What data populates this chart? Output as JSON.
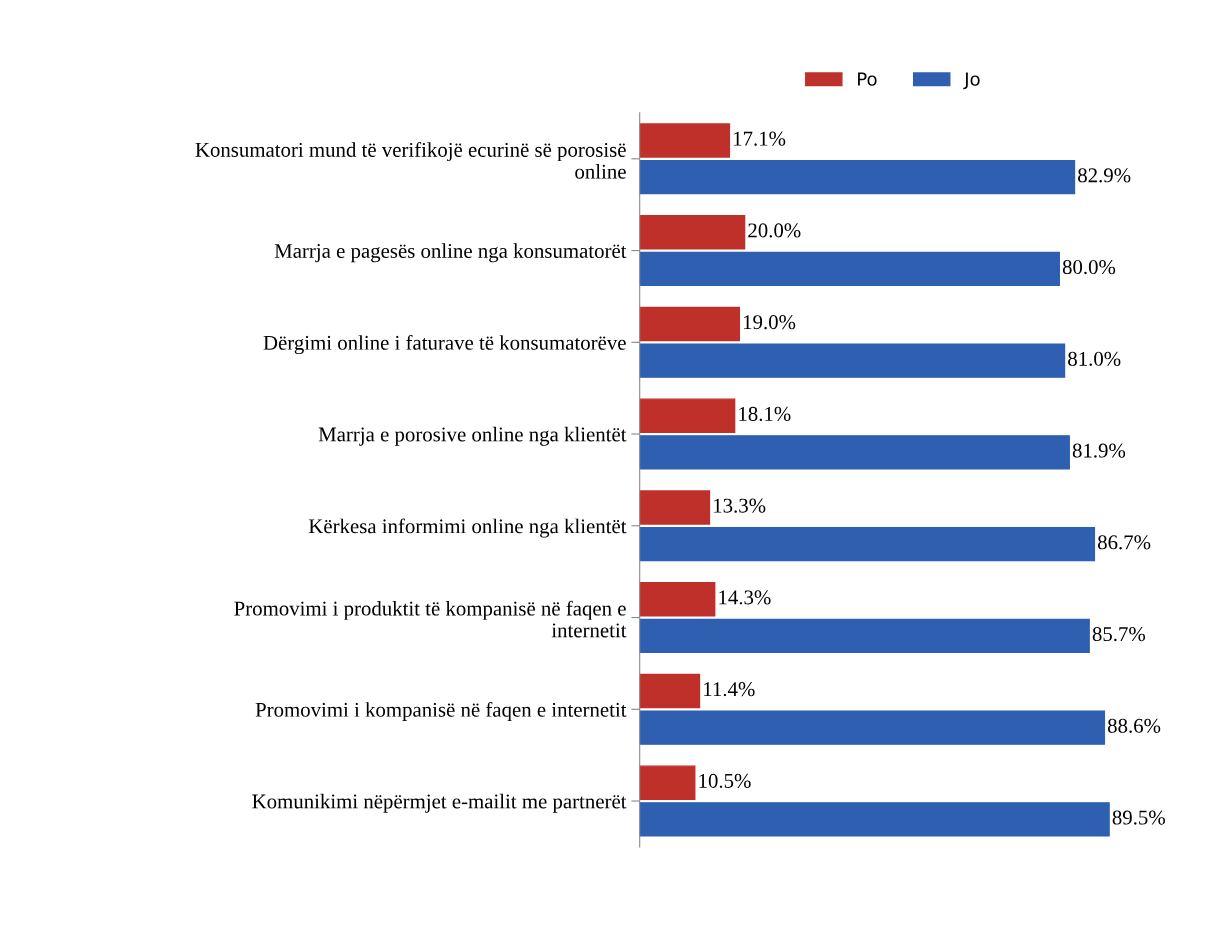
{
  "chart_data": {
    "type": "bar",
    "orientation": "horizontal",
    "categories": [
      "Konsumatori mund të verifikojë ecurinë së porosisë\nonline",
      "Marrja e pagesës online nga konsumatorët",
      "Dërgimi online i faturave të konsumatorëve",
      "Marrja e porosive online nga klientët",
      "Kërkesa informimi online nga klientët",
      "Promovimi i produktit të kompanisë në faqen e\ninternetit",
      "Promovimi i kompanisë në faqen e internetit",
      "Komunikimi nëpërmjet e-mailit me partnerët"
    ],
    "series": [
      {
        "name": "Po",
        "color": "#c0302b",
        "values": [
          17.1,
          20.0,
          19.0,
          18.1,
          13.3,
          14.3,
          11.4,
          10.5
        ],
        "value_labels": [
          "17.1%",
          "20.0%",
          "19.0%",
          "18.1%",
          "13.3%",
          "14.3%",
          "11.4%",
          "10.5%"
        ]
      },
      {
        "name": "Jo",
        "color": "#2e5fb0",
        "values": [
          82.9,
          80.0,
          81.0,
          81.9,
          86.7,
          85.7,
          88.6,
          89.5
        ],
        "value_labels": [
          "82.9%",
          "80.0%",
          "81.0%",
          "81.9%",
          "86.7%",
          "85.7%",
          "88.6%",
          "89.5%"
        ]
      }
    ],
    "legend": "top",
    "grid": false,
    "tick_labels": "y"
  }
}
